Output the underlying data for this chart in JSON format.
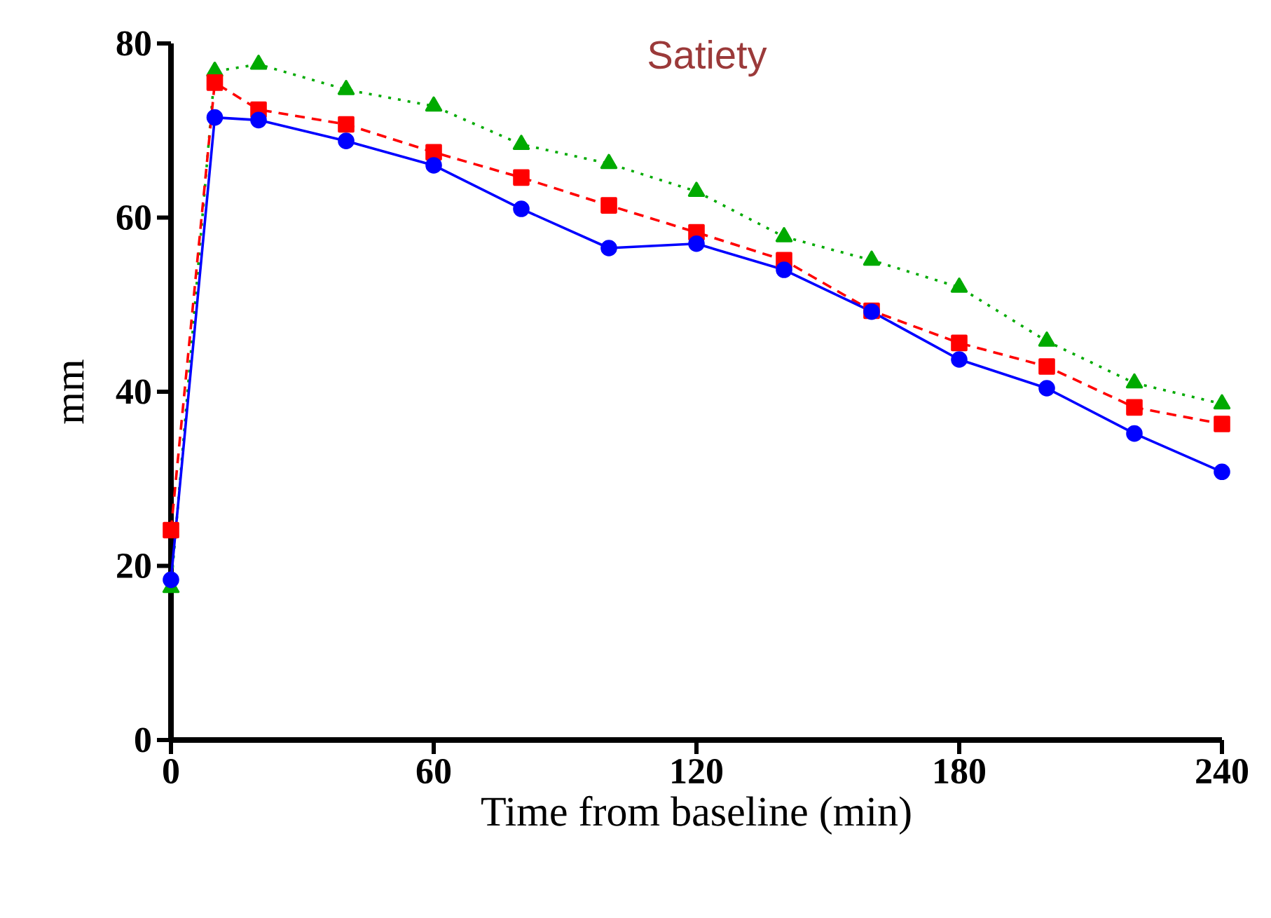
{
  "chart_data": {
    "type": "line",
    "title": "Satiety",
    "xlabel": "Time from baseline (min)",
    "ylabel": "mm",
    "x": [
      0,
      10,
      20,
      40,
      60,
      80,
      100,
      120,
      140,
      160,
      180,
      200,
      220,
      240
    ],
    "series": [
      {
        "color": "#0000ff",
        "marker": "circle",
        "line_style": "solid",
        "values": [
          18.4,
          71.5,
          71.2,
          68.8,
          66.0,
          61.0,
          56.5,
          57.0,
          54.0,
          49.2,
          43.7,
          40.4,
          35.2,
          30.8
        ]
      },
      {
        "color": "#ff0000",
        "marker": "square",
        "line_style": "dashed",
        "values": [
          24.1,
          75.5,
          72.4,
          70.7,
          67.5,
          64.6,
          61.4,
          58.3,
          55.1,
          49.3,
          45.6,
          42.9,
          38.2,
          36.3
        ]
      },
      {
        "color": "#00aa00",
        "marker": "triangle",
        "line_style": "dotted",
        "values": [
          17.5,
          76.8,
          77.6,
          74.7,
          72.8,
          68.4,
          66.2,
          63.0,
          57.8,
          55.1,
          52.0,
          45.8,
          41.0,
          38.6
        ]
      }
    ],
    "xlim": [
      0,
      240
    ],
    "ylim": [
      0,
      80
    ],
    "xticks": [
      0,
      60,
      120,
      180,
      240
    ],
    "yticks": [
      0,
      20,
      40,
      60,
      80
    ],
    "grid": false
  }
}
